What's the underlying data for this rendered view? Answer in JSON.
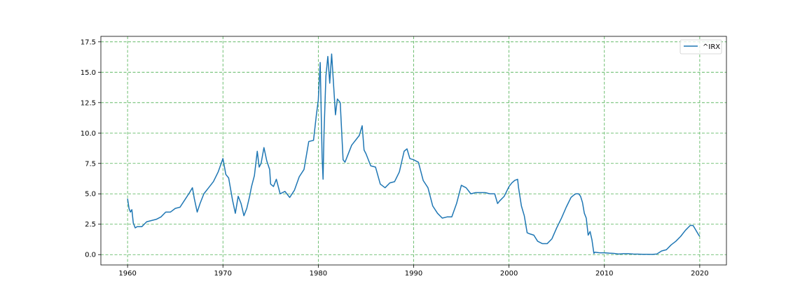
{
  "chart_data": {
    "type": "line",
    "title": "",
    "xlabel": "",
    "ylabel": "",
    "xlim": [
      1957.2,
      2022.8
    ],
    "ylim": [
      -0.85,
      17.95
    ],
    "x_ticks": [
      1960,
      1970,
      1980,
      1990,
      2000,
      2010,
      2020
    ],
    "x_tick_labels": [
      "1960",
      "1970",
      "1980",
      "1990",
      "2000",
      "2010",
      "2020"
    ],
    "y_ticks": [
      0.0,
      2.5,
      5.0,
      7.5,
      10.0,
      12.5,
      15.0,
      17.5
    ],
    "y_tick_labels": [
      "0.0",
      "2.5",
      "5.0",
      "7.5",
      "10.0",
      "12.5",
      "15.0",
      "17.5"
    ],
    "grid": true,
    "grid_color": "#4caf50",
    "legend_position": "top-right",
    "series": [
      {
        "name": "^IRX",
        "color": "#1f77b4",
        "x": [
          1960.0,
          1960.15,
          1960.3,
          1960.45,
          1960.6,
          1960.8,
          1961.0,
          1961.5,
          1962.0,
          1962.5,
          1963.0,
          1963.5,
          1964.0,
          1964.5,
          1965.0,
          1965.5,
          1966.0,
          1966.5,
          1966.8,
          1967.0,
          1967.3,
          1967.6,
          1968.0,
          1968.5,
          1969.0,
          1969.5,
          1970.0,
          1970.3,
          1970.6,
          1971.0,
          1971.3,
          1971.6,
          1971.9,
          1972.2,
          1972.5,
          1972.8,
          1973.0,
          1973.3,
          1973.6,
          1973.8,
          1974.0,
          1974.3,
          1974.6,
          1974.9,
          1975.0,
          1975.3,
          1975.6,
          1976.0,
          1976.5,
          1977.0,
          1977.5,
          1978.0,
          1978.5,
          1979.0,
          1979.5,
          1979.8,
          1980.0,
          1980.2,
          1980.4,
          1980.5,
          1980.6,
          1980.8,
          1981.0,
          1981.2,
          1981.4,
          1981.6,
          1981.8,
          1982.0,
          1982.3,
          1982.6,
          1982.8,
          1983.0,
          1983.5,
          1984.0,
          1984.3,
          1984.6,
          1984.8,
          1985.0,
          1985.5,
          1986.0,
          1986.5,
          1987.0,
          1987.5,
          1988.0,
          1988.5,
          1989.0,
          1989.3,
          1989.6,
          1990.0,
          1990.5,
          1991.0,
          1991.5,
          1992.0,
          1992.5,
          1993.0,
          1993.5,
          1994.0,
          1994.5,
          1995.0,
          1995.5,
          1996.0,
          1996.5,
          1997.0,
          1997.5,
          1998.0,
          1998.5,
          1998.8,
          1999.0,
          1999.5,
          2000.0,
          2000.3,
          2000.6,
          2000.9,
          2001.0,
          2001.3,
          2001.6,
          2001.9,
          2002.2,
          2002.6,
          2003.0,
          2003.5,
          2004.0,
          2004.5,
          2005.0,
          2005.5,
          2006.0,
          2006.5,
          2006.8,
          2007.0,
          2007.3,
          2007.5,
          2007.7,
          2007.9,
          2008.1,
          2008.3,
          2008.5,
          2008.7,
          2008.9,
          2009.0,
          2009.5,
          2010.0,
          2010.5,
          2011.0,
          2011.5,
          2012.0,
          2012.5,
          2013.0,
          2013.5,
          2014.0,
          2014.5,
          2015.0,
          2015.5,
          2016.0,
          2016.5,
          2017.0,
          2017.5,
          2018.0,
          2018.5,
          2019.0,
          2019.3,
          2019.6,
          2019.9,
          2020.0
        ],
        "values": [
          4.6,
          3.8,
          3.5,
          3.7,
          2.6,
          2.2,
          2.3,
          2.3,
          2.7,
          2.8,
          2.9,
          3.1,
          3.5,
          3.5,
          3.8,
          3.9,
          4.5,
          5.1,
          5.5,
          4.6,
          3.5,
          4.2,
          5.0,
          5.5,
          6.0,
          6.8,
          7.9,
          6.6,
          6.3,
          4.5,
          3.4,
          4.8,
          4.2,
          3.2,
          3.8,
          4.8,
          5.6,
          6.5,
          8.5,
          7.2,
          7.5,
          8.8,
          7.7,
          7.0,
          5.8,
          5.6,
          6.2,
          5.0,
          5.2,
          4.7,
          5.3,
          6.4,
          7.0,
          9.3,
          9.4,
          11.5,
          12.7,
          15.8,
          8.0,
          6.2,
          10.0,
          14.7,
          16.3,
          14.1,
          16.5,
          14.0,
          11.5,
          12.8,
          12.5,
          7.8,
          7.6,
          8.0,
          9.0,
          9.5,
          9.8,
          10.6,
          8.6,
          8.3,
          7.3,
          7.2,
          5.8,
          5.5,
          5.9,
          6.0,
          6.8,
          8.5,
          8.7,
          7.9,
          7.8,
          7.6,
          6.1,
          5.5,
          4.0,
          3.4,
          3.0,
          3.1,
          3.1,
          4.2,
          5.7,
          5.5,
          5.0,
          5.1,
          5.1,
          5.1,
          5.0,
          5.0,
          4.2,
          4.4,
          4.8,
          5.6,
          5.9,
          6.1,
          6.2,
          5.5,
          4.0,
          3.2,
          1.8,
          1.7,
          1.6,
          1.1,
          0.9,
          0.9,
          1.3,
          2.2,
          3.0,
          3.9,
          4.7,
          4.9,
          5.0,
          5.0,
          4.8,
          4.3,
          3.4,
          3.0,
          1.6,
          1.9,
          1.2,
          0.1,
          0.2,
          0.15,
          0.15,
          0.12,
          0.1,
          0.05,
          0.08,
          0.08,
          0.05,
          0.04,
          0.03,
          0.03,
          0.02,
          0.05,
          0.3,
          0.4,
          0.8,
          1.1,
          1.5,
          2.0,
          2.4,
          2.4,
          2.0,
          1.6,
          1.5
        ]
      }
    ]
  }
}
